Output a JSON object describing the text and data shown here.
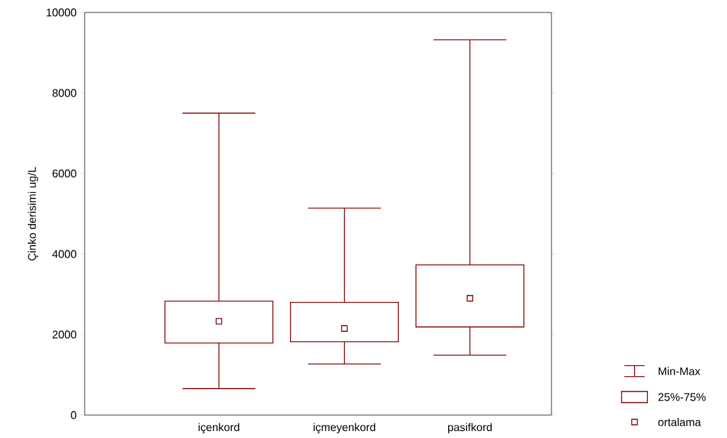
{
  "chart_data": {
    "type": "box",
    "ylabel": "Çinko derisimi ug/L",
    "categories": [
      "içenkord",
      "içmeyenkord",
      "pasifkord"
    ],
    "boxes": [
      {
        "low": 660,
        "q1": 1790,
        "q3": 2830,
        "high": 7500,
        "mean": 2330
      },
      {
        "low": 1270,
        "q1": 1820,
        "q3": 2800,
        "high": 5140,
        "mean": 2150
      },
      {
        "low": 1490,
        "q1": 2190,
        "q3": 3730,
        "high": 9320,
        "mean": 2900
      }
    ],
    "color": "#800000",
    "ylim": [
      0,
      10000
    ],
    "yticks": [
      0,
      2000,
      4000,
      6000,
      8000,
      10000
    ],
    "grid": false,
    "annotations": [
      "Min-Max",
      "25%-75%",
      "ortalama"
    ]
  }
}
